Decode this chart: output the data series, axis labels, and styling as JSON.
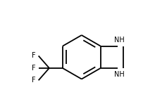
{
  "bg_color": "#ffffff",
  "line_color": "#000000",
  "line_width": 1.3,
  "font_size": 7.0,
  "fig_width": 2.2,
  "fig_height": 1.48,
  "dpi": 100,
  "bonds": {
    "benzene_outer": [
      [
        [
          0.34,
          0.5
        ],
        [
          0.46,
          0.3
        ]
      ],
      [
        [
          0.46,
          0.3
        ],
        [
          0.62,
          0.3
        ]
      ],
      [
        [
          0.62,
          0.3
        ],
        [
          0.74,
          0.5
        ]
      ],
      [
        [
          0.74,
          0.5
        ],
        [
          0.62,
          0.7
        ]
      ],
      [
        [
          0.62,
          0.7
        ],
        [
          0.46,
          0.7
        ]
      ],
      [
        [
          0.46,
          0.7
        ],
        [
          0.34,
          0.5
        ]
      ]
    ],
    "benzene_inner": [
      [
        [
          0.48,
          0.33
        ],
        [
          0.6,
          0.33
        ]
      ],
      [
        [
          0.64,
          0.33
        ],
        [
          0.72,
          0.47
        ]
      ],
      [
        [
          0.48,
          0.67
        ],
        [
          0.36,
          0.53
        ]
      ],
      [
        [
          0.6,
          0.67
        ],
        [
          0.48,
          0.67
        ]
      ]
    ],
    "sat_ring": [
      [
        [
          0.74,
          0.3
        ],
        [
          0.9,
          0.3
        ]
      ],
      [
        [
          0.9,
          0.3
        ],
        [
          0.9,
          0.7
        ]
      ],
      [
        [
          0.9,
          0.7
        ],
        [
          0.74,
          0.7
        ]
      ]
    ],
    "cf3_stem": [
      [
        [
          0.34,
          0.5
        ],
        [
          0.18,
          0.5
        ]
      ]
    ],
    "cf3_branches": [
      [
        [
          0.18,
          0.5
        ],
        [
          0.06,
          0.38
        ]
      ],
      [
        [
          0.18,
          0.5
        ],
        [
          0.06,
          0.5
        ]
      ],
      [
        [
          0.18,
          0.5
        ],
        [
          0.06,
          0.62
        ]
      ]
    ]
  },
  "labels": {
    "NH_top": [
      0.835,
      0.23,
      "NH"
    ],
    "NH_bot": [
      0.835,
      0.77,
      "NH"
    ],
    "F_top": [
      0.01,
      0.35,
      "F"
    ],
    "F_mid": [
      0.01,
      0.5,
      "F"
    ],
    "F_bot": [
      0.01,
      0.65,
      "F"
    ]
  }
}
